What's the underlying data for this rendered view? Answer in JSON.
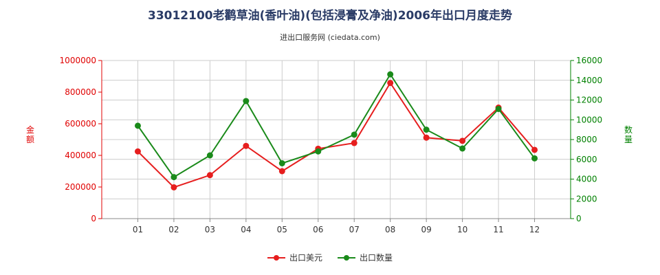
{
  "header": {
    "title": "33012100老鹳草油(香叶油)(包括浸膏及净油)2006年出口月度走势",
    "subtitle": "进出口服务网 (ciedata.com)"
  },
  "axes": {
    "left_label": "金额",
    "right_label": "数量"
  },
  "legend": {
    "series1": "出口美元",
    "series2": "出口数量"
  },
  "colors": {
    "series1": "#e61e1e",
    "series2": "#1a8a1a",
    "left_axis": "#e00000",
    "right_axis": "#008000",
    "grid": "#cccccc"
  },
  "chart_data": {
    "type": "line",
    "categories": [
      "01",
      "02",
      "03",
      "04",
      "05",
      "06",
      "07",
      "08",
      "09",
      "10",
      "11",
      "12"
    ],
    "series": [
      {
        "name": "出口美元",
        "axis": "left",
        "values": [
          425000,
          198000,
          275000,
          460000,
          300000,
          442000,
          478000,
          858000,
          512000,
          492000,
          702000,
          435000
        ]
      },
      {
        "name": "出口数量",
        "axis": "right",
        "values": [
          9400,
          4200,
          6400,
          11900,
          5600,
          6800,
          8500,
          14600,
          9000,
          7100,
          11100,
          6100
        ]
      }
    ],
    "y_left": {
      "min": 0,
      "max": 1000000,
      "ticks": [
        "0",
        "200000",
        "400000",
        "600000",
        "800000",
        "1000000"
      ]
    },
    "y_right": {
      "min": 0,
      "max": 16000,
      "ticks": [
        "0",
        "2000",
        "4000",
        "6000",
        "8000",
        "10000",
        "12000",
        "14000",
        "16000"
      ]
    },
    "grid": true,
    "legend_position": "bottom"
  }
}
